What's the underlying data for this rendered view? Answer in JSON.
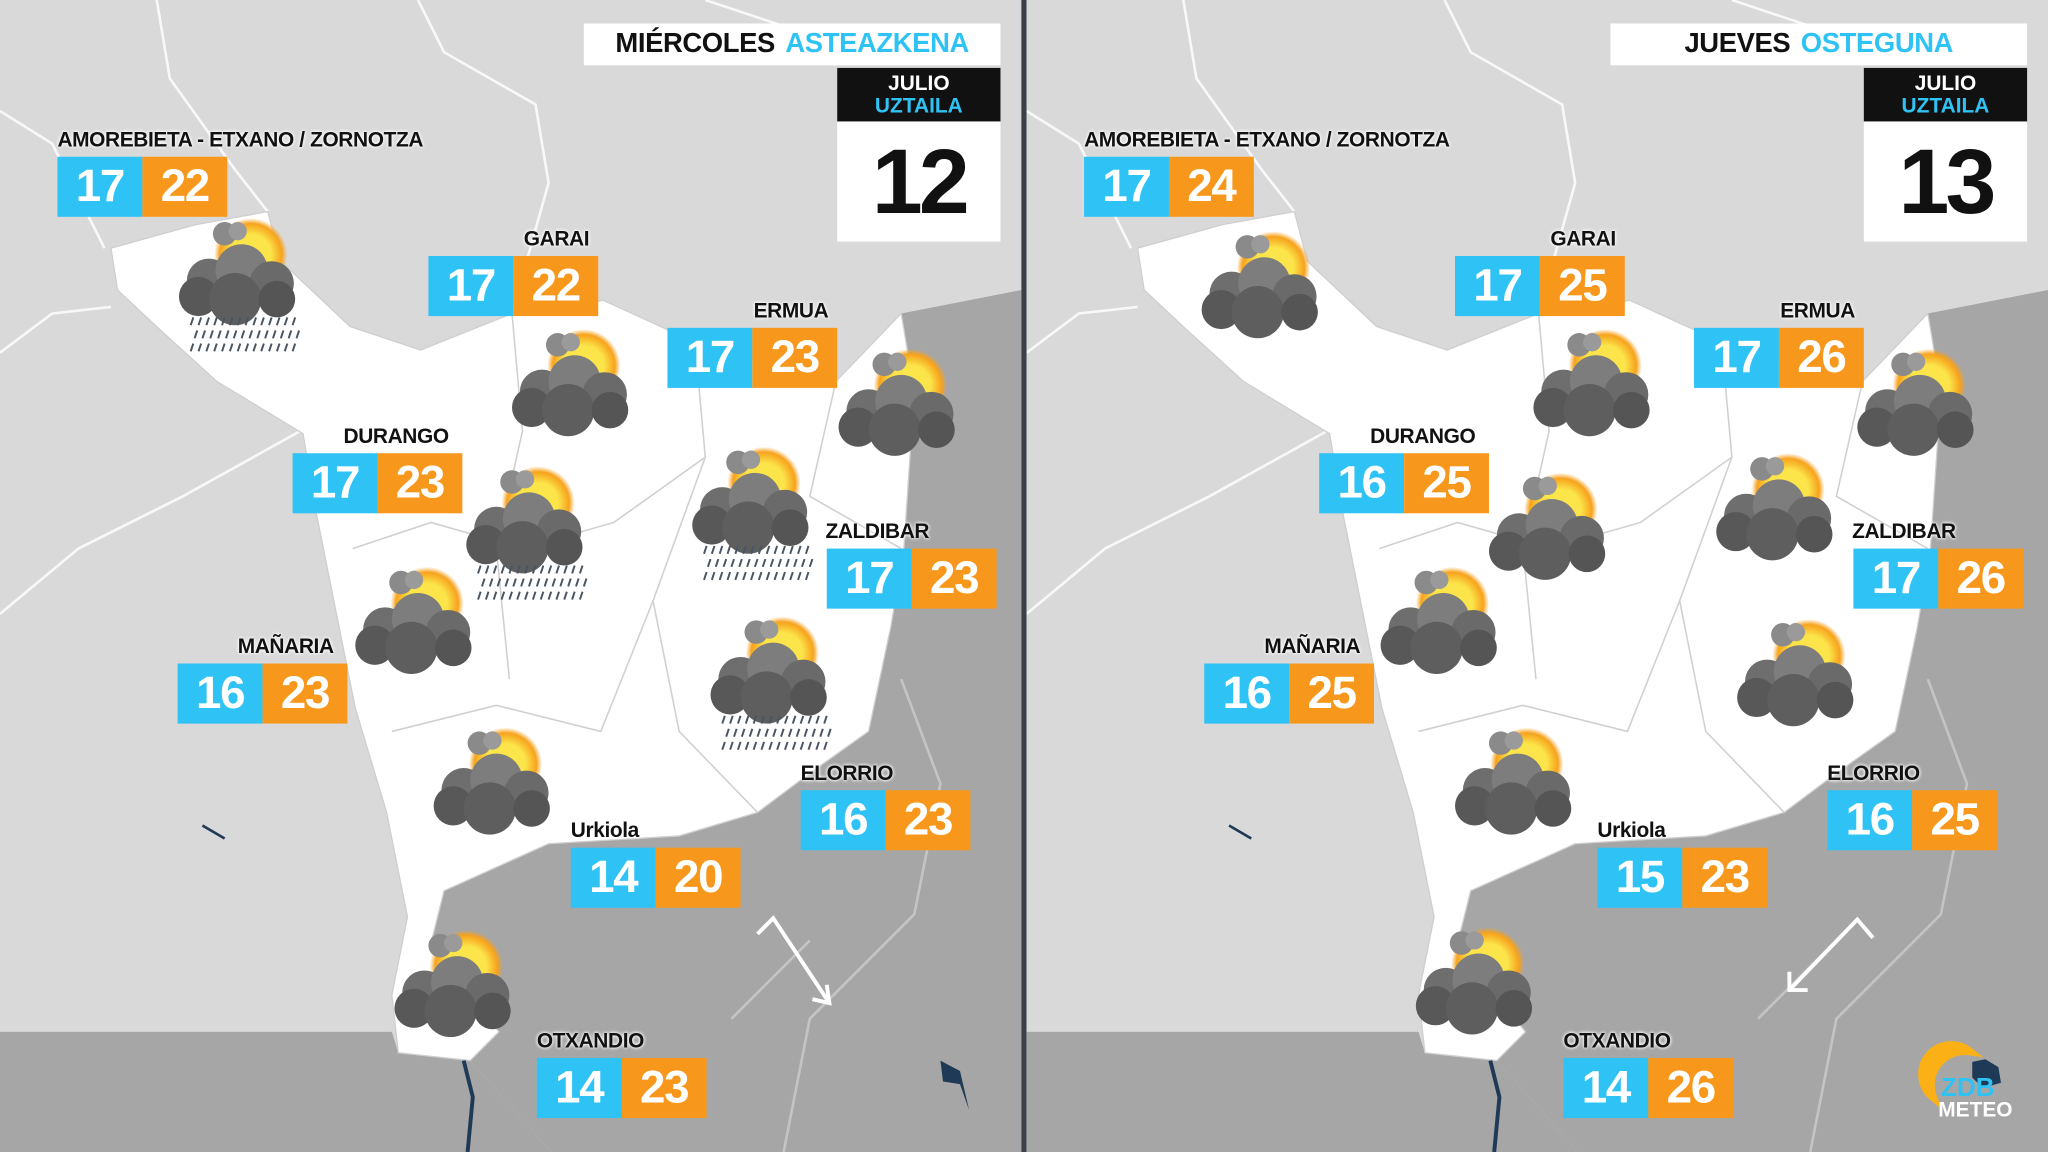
{
  "colors": {
    "min_temp": "#2fc3f5",
    "max_temp": "#f7981d",
    "land": "#ffffff",
    "background": "#d9d9d9",
    "dark_region": "#a6a6a6",
    "accent": "#2fc3f5"
  },
  "panels": [
    {
      "day_es": "MIÉRCOLES",
      "day_eu": "ASTEAZKENA",
      "month_es": "JULIO",
      "month_eu": "UZTAILA",
      "day_num": "12",
      "arrow": "wind-arrow-southeast",
      "cities": [
        {
          "name": "AMOREBIETA - ETXANO / ZORNOTZA",
          "min": "17",
          "max": "22"
        },
        {
          "name": "GARAI",
          "min": "17",
          "max": "22"
        },
        {
          "name": "ERMUA",
          "min": "17",
          "max": "23"
        },
        {
          "name": "DURANGO",
          "min": "17",
          "max": "23"
        },
        {
          "name": "ZALDIBAR",
          "min": "17",
          "max": "23"
        },
        {
          "name": "MAÑARIA",
          "min": "16",
          "max": "23"
        },
        {
          "name": "ELORRIO",
          "min": "16",
          "max": "23"
        },
        {
          "name": "Urkiola",
          "min": "14",
          "max": "20"
        },
        {
          "name": "OTXANDIO",
          "min": "14",
          "max": "23"
        }
      ],
      "icons": [
        "sun-cloud-rain-icon",
        "sun-cloud-icon",
        "sun-cloud-icon",
        "sun-cloud-rain-icon",
        "sun-cloud-rain-icon",
        "sun-cloud-icon",
        "sun-cloud-rain-icon",
        "sun-cloud-icon",
        "sun-cloud-icon"
      ]
    },
    {
      "day_es": "JUEVES",
      "day_eu": "OSTEGUNA",
      "month_es": "JULIO",
      "month_eu": "UZTAILA",
      "day_num": "13",
      "arrow": "wind-arrow-southwest",
      "cities": [
        {
          "name": "AMOREBIETA - ETXANO / ZORNOTZA",
          "min": "17",
          "max": "24"
        },
        {
          "name": "GARAI",
          "min": "17",
          "max": "25"
        },
        {
          "name": "ERMUA",
          "min": "17",
          "max": "26"
        },
        {
          "name": "DURANGO",
          "min": "16",
          "max": "25"
        },
        {
          "name": "ZALDIBAR",
          "min": "17",
          "max": "26"
        },
        {
          "name": "MAÑARIA",
          "min": "16",
          "max": "25"
        },
        {
          "name": "ELORRIO",
          "min": "16",
          "max": "25"
        },
        {
          "name": "Urkiola",
          "min": "15",
          "max": "23"
        },
        {
          "name": "OTXANDIO",
          "min": "14",
          "max": "26"
        }
      ],
      "icons": [
        "sun-cloud-icon",
        "sun-cloud-icon",
        "sun-cloud-icon",
        "sun-cloud-icon",
        "sun-cloud-icon",
        "sun-cloud-icon",
        "sun-cloud-icon",
        "sun-cloud-icon",
        "sun-cloud-icon"
      ]
    }
  ],
  "logo": {
    "line1": "ZDB",
    "line2": "METEO"
  }
}
